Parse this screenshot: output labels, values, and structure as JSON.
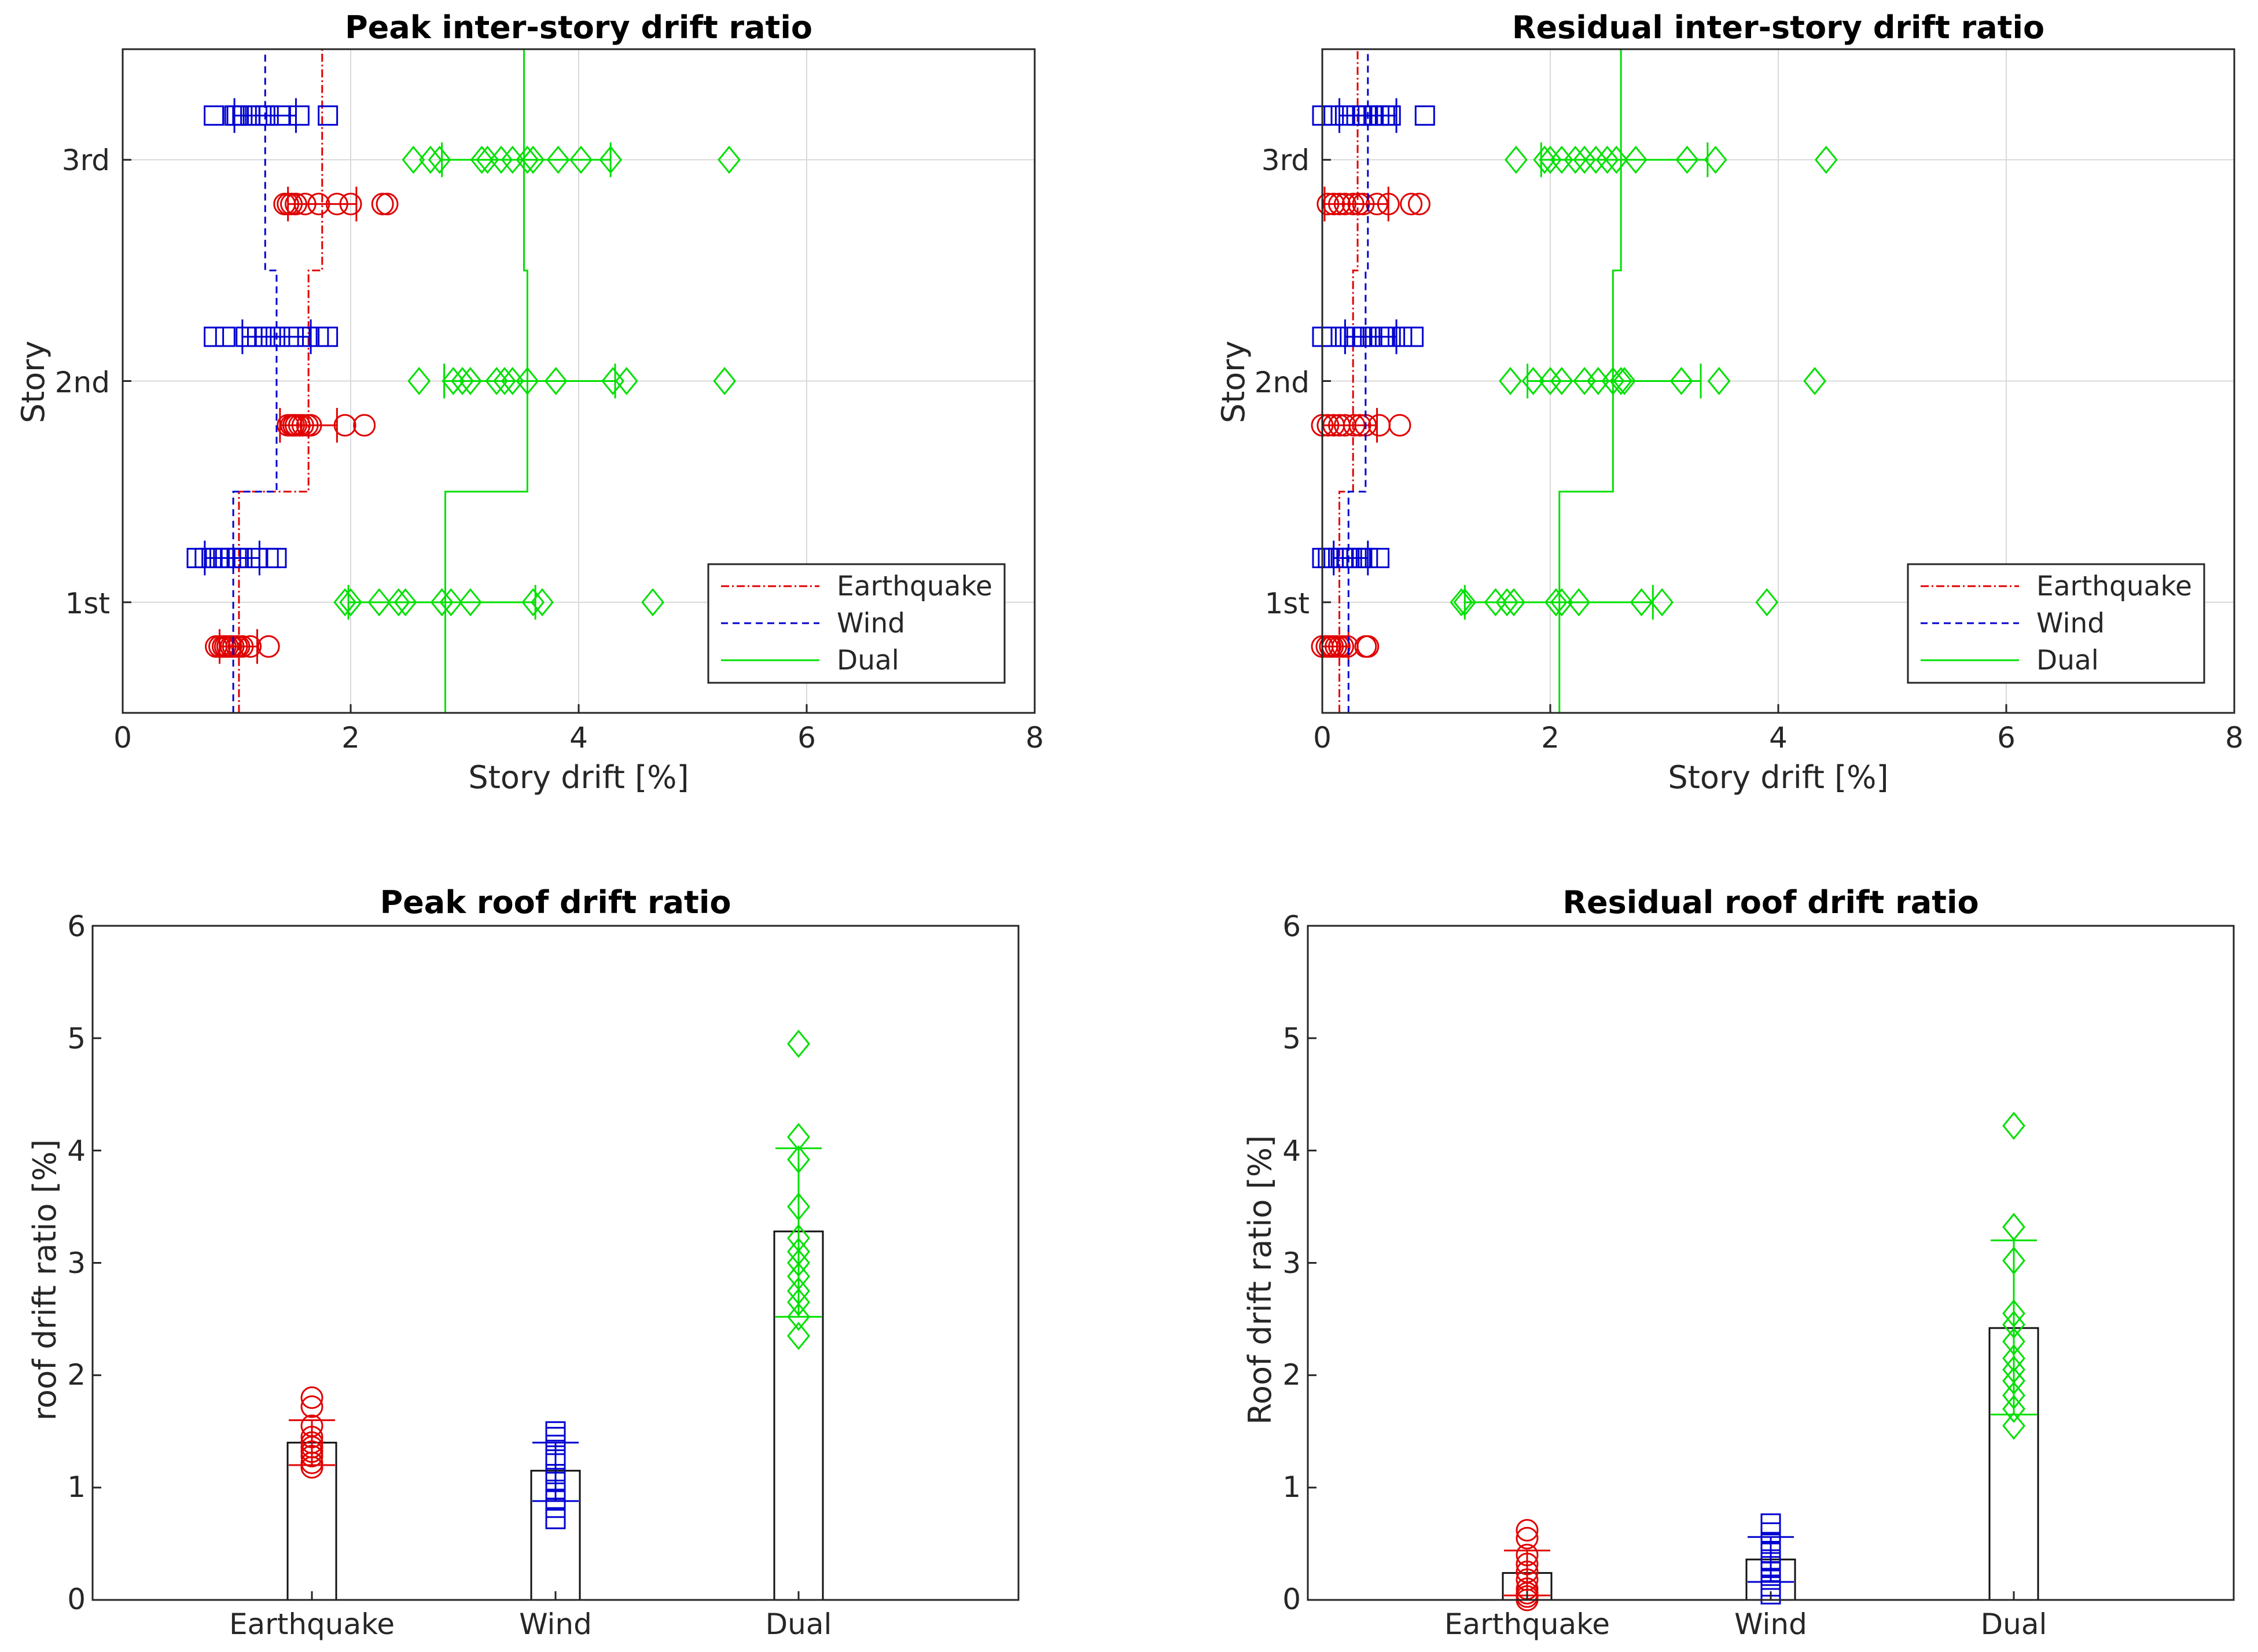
{
  "colors": {
    "earthquake": "#e00000",
    "wind": "#0000d0",
    "dual": "#00e000",
    "grid": "#d9d9d9",
    "axis": "#262626"
  },
  "chart_data": [
    {
      "id": "peak-inter-story",
      "type": "scatter",
      "title": "Peak inter-story drift ratio",
      "xlabel": "Story drift [%]",
      "ylabel": "Story",
      "xlim": [
        0,
        8
      ],
      "xticks": [
        "0",
        "2",
        "4",
        "6",
        "8"
      ],
      "categories": [
        "1st",
        "2nd",
        "3rd"
      ],
      "grid": true,
      "legend": {
        "position": "bottom-right",
        "entries": [
          "Earthquake",
          "Wind",
          "Dual"
        ]
      },
      "series": [
        {
          "name": "Earthquake",
          "marker": "circle",
          "offset": -0.2,
          "envelope": [
            1.02,
            1.63,
            1.75
          ],
          "points": [
            [
              0.82,
              0.85,
              0.88,
              0.9,
              0.92,
              0.95,
              0.97,
              1.0,
              1.02,
              1.05,
              1.12,
              1.28
            ],
            [
              1.45,
              1.48,
              1.5,
              1.52,
              1.55,
              1.58,
              1.62,
              1.65,
              1.95,
              2.12
            ],
            [
              1.42,
              1.45,
              1.48,
              1.52,
              1.6,
              1.72,
              1.88,
              2.0,
              2.28,
              2.32
            ]
          ],
          "err": [
            [
              0.85,
              1.18
            ],
            [
              1.38,
              1.88
            ],
            [
              1.45,
              2.05
            ]
          ]
        },
        {
          "name": "Wind",
          "marker": "square",
          "offset": 0.2,
          "envelope": [
            0.97,
            1.35,
            1.25
          ],
          "points": [
            [
              0.65,
              0.72,
              0.78,
              0.85,
              0.9,
              0.95,
              1.0,
              1.05,
              1.18,
              1.28,
              1.35
            ],
            [
              0.8,
              0.9,
              1.08,
              1.18,
              1.25,
              1.3,
              1.38,
              1.5,
              1.62,
              1.72,
              1.8
            ],
            [
              0.8,
              0.98,
              1.0,
              1.05,
              1.12,
              1.18,
              1.25,
              1.28,
              1.38,
              1.55,
              1.8
            ]
          ],
          "err": [
            [
              0.72,
              1.2
            ],
            [
              1.05,
              1.65
            ],
            [
              0.98,
              1.52
            ]
          ]
        },
        {
          "name": "Dual",
          "marker": "diamond",
          "offset": 0,
          "envelope": [
            2.83,
            3.55,
            3.52
          ],
          "points": [
            [
              1.95,
              2.0,
              2.25,
              2.42,
              2.48,
              2.8,
              2.88,
              3.05,
              3.6,
              3.68,
              4.65
            ],
            [
              2.6,
              2.9,
              2.98,
              3.05,
              3.28,
              3.35,
              3.42,
              3.55,
              3.8,
              4.3,
              4.42,
              5.28
            ],
            [
              2.55,
              2.7,
              2.78,
              3.15,
              3.2,
              3.32,
              3.42,
              3.55,
              3.6,
              3.82,
              4.02,
              4.28,
              5.32
            ]
          ],
          "err": [
            [
              1.98,
              3.62
            ],
            [
              2.82,
              4.32
            ],
            [
              2.8,
              4.28
            ]
          ]
        }
      ]
    },
    {
      "id": "residual-inter-story",
      "type": "scatter",
      "title": "Residual inter-story drift ratio",
      "xlabel": "Story drift [%]",
      "ylabel": "Story",
      "xlim": [
        0,
        8
      ],
      "xticks": [
        "0",
        "2",
        "4",
        "6",
        "8"
      ],
      "categories": [
        "1st",
        "2nd",
        "3rd"
      ],
      "grid": true,
      "legend": {
        "position": "bottom-right",
        "entries": [
          "Earthquake",
          "Wind",
          "Dual"
        ]
      },
      "series": [
        {
          "name": "Earthquake",
          "marker": "circle",
          "offset": -0.2,
          "envelope": [
            0.15,
            0.27,
            0.31
          ],
          "points": [
            [
              0.0,
              0.04,
              0.07,
              0.09,
              0.12,
              0.15,
              0.18,
              0.22,
              0.38,
              0.4
            ],
            [
              0.0,
              0.05,
              0.1,
              0.15,
              0.2,
              0.28,
              0.33,
              0.38,
              0.5,
              0.68
            ],
            [
              0.05,
              0.1,
              0.15,
              0.2,
              0.27,
              0.32,
              0.36,
              0.48,
              0.58,
              0.78,
              0.85
            ]
          ],
          "err": [
            [
              0.0,
              0.23
            ],
            [
              0.0,
              0.48
            ],
            [
              0.02,
              0.58
            ]
          ]
        },
        {
          "name": "Wind",
          "marker": "square",
          "offset": 0.2,
          "envelope": [
            0.23,
            0.38,
            0.4
          ],
          "points": [
            [
              0.0,
              0.05,
              0.1,
              0.14,
              0.18,
              0.22,
              0.26,
              0.3,
              0.35,
              0.4,
              0.5
            ],
            [
              0.0,
              0.08,
              0.2,
              0.28,
              0.3,
              0.35,
              0.42,
              0.5,
              0.55,
              0.6,
              0.7,
              0.8
            ],
            [
              0.0,
              0.1,
              0.2,
              0.3,
              0.35,
              0.4,
              0.45,
              0.5,
              0.55,
              0.6,
              0.9
            ]
          ],
          "err": [
            [
              0.1,
              0.4
            ],
            [
              0.2,
              0.65
            ],
            [
              0.15,
              0.65
            ]
          ]
        },
        {
          "name": "Dual",
          "marker": "diamond",
          "offset": 0,
          "envelope": [
            2.08,
            2.55,
            2.62
          ],
          "points": [
            [
              1.22,
              1.25,
              1.52,
              1.62,
              1.68,
              2.05,
              2.1,
              2.25,
              2.8,
              2.98,
              3.9
            ],
            [
              1.65,
              1.85,
              2.0,
              2.1,
              2.3,
              2.42,
              2.55,
              2.62,
              2.65,
              3.15,
              3.48,
              4.32
            ],
            [
              1.7,
              1.95,
              2.0,
              2.1,
              2.22,
              2.3,
              2.4,
              2.5,
              2.58,
              2.75,
              3.2,
              3.45,
              4.42
            ]
          ],
          "err": [
            [
              1.25,
              2.9
            ],
            [
              1.8,
              3.32
            ],
            [
              1.92,
              3.38
            ]
          ]
        }
      ]
    },
    {
      "id": "peak-roof",
      "type": "bar",
      "title": "Peak roof drift ratio",
      "xlabel": "",
      "ylabel": "roof drift ratio [%]",
      "ylim": [
        0,
        6
      ],
      "yticks": [
        "0",
        "1",
        "2",
        "3",
        "4",
        "5",
        "6"
      ],
      "categories": [
        "Earthquake",
        "Wind",
        "Dual"
      ],
      "grid": false,
      "values": [
        1.4,
        1.15,
        3.28
      ],
      "series": [
        {
          "name": "Earthquake",
          "marker": "circle",
          "points": [
            1.18,
            1.22,
            1.28,
            1.32,
            1.36,
            1.4,
            1.45,
            1.55,
            1.72,
            1.8
          ],
          "err": [
            1.2,
            1.6
          ]
        },
        {
          "name": "Wind",
          "marker": "square",
          "points": [
            0.72,
            0.82,
            0.9,
            0.98,
            1.05,
            1.12,
            1.25,
            1.38,
            1.45,
            1.5
          ],
          "err": [
            0.88,
            1.4
          ]
        },
        {
          "name": "Dual",
          "marker": "diamond",
          "points": [
            2.35,
            2.52,
            2.65,
            2.75,
            2.88,
            3.0,
            3.1,
            3.22,
            3.5,
            3.92,
            4.12,
            4.95
          ],
          "err": [
            2.52,
            4.02
          ]
        }
      ]
    },
    {
      "id": "residual-roof",
      "type": "bar",
      "title": "Residual roof drift ratio",
      "xlabel": "",
      "ylabel": "Roof drift ratio [%]",
      "ylim": [
        0,
        6
      ],
      "yticks": [
        "0",
        "1",
        "2",
        "3",
        "4",
        "5",
        "6"
      ],
      "categories": [
        "Earthquake",
        "Wind",
        "Dual"
      ],
      "grid": false,
      "values": [
        0.24,
        0.36,
        2.42
      ],
      "series": [
        {
          "name": "Earthquake",
          "marker": "circle",
          "points": [
            0.0,
            0.03,
            0.06,
            0.1,
            0.18,
            0.25,
            0.32,
            0.4,
            0.55,
            0.62
          ],
          "err": [
            0.04,
            0.44
          ]
        },
        {
          "name": "Wind",
          "marker": "square",
          "points": [
            0.05,
            0.12,
            0.18,
            0.25,
            0.3,
            0.36,
            0.42,
            0.5,
            0.6,
            0.68
          ],
          "err": [
            0.16,
            0.56
          ]
        },
        {
          "name": "Dual",
          "marker": "diamond",
          "points": [
            1.55,
            1.7,
            1.82,
            1.95,
            2.05,
            2.15,
            2.3,
            2.45,
            2.55,
            3.02,
            3.32,
            4.22
          ],
          "err": [
            1.65,
            3.2
          ]
        }
      ]
    }
  ]
}
